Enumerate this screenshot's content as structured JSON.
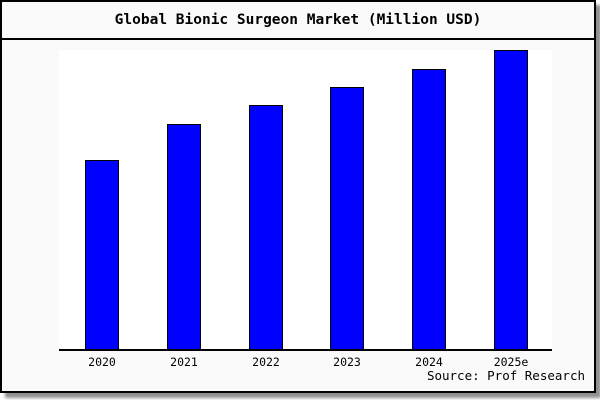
{
  "title": "Global Bionic Surgeon Market (Million USD)",
  "source": "Source: Prof Research",
  "chart_data": {
    "type": "bar",
    "title": "Global Bionic Surgeon Market (Million USD)",
    "categories": [
      "2020",
      "2021",
      "2022",
      "2023",
      "2024",
      "2025e"
    ],
    "values": [
      63.3,
      75.3,
      81.7,
      87.7,
      93.7,
      100
    ],
    "value_scale_note": "no y-axis ticks shown; values estimated relative to 2025e bar = 100",
    "xlabel": "",
    "ylabel": "",
    "ylim": [
      0,
      100
    ],
    "grid": false,
    "legend": "none",
    "colors": {
      "bar_fill": "#0000ff",
      "bar_border": "#000000",
      "plot_bg": "#ffffff",
      "frame_bg": "#fafafa",
      "frame_border": "#000000"
    }
  }
}
